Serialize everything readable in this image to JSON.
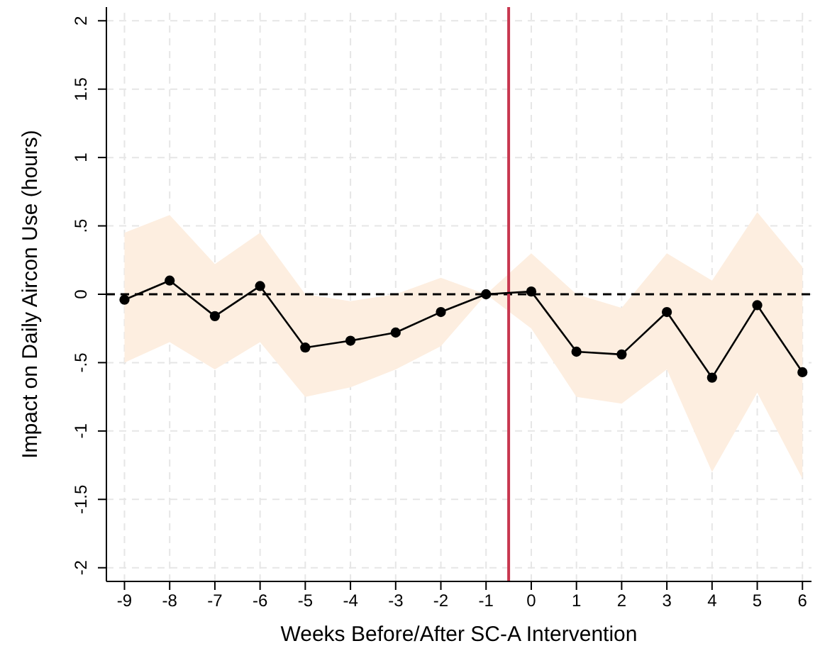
{
  "chart_data": {
    "type": "line",
    "xlabel": "Weeks Before/After SC-A Intervention",
    "ylabel": "Impact on Daily Aircon Use (hours)",
    "x": [
      -9,
      -8,
      -7,
      -6,
      -5,
      -4,
      -3,
      -2,
      -1,
      0,
      1,
      2,
      3,
      4,
      5,
      6
    ],
    "series": [
      {
        "color": "#000000",
        "values": [
          -0.04,
          0.1,
          -0.16,
          0.06,
          -0.39,
          -0.34,
          -0.28,
          -0.13,
          0,
          0.02,
          -0.42,
          -0.44,
          -0.13,
          -0.61,
          -0.08,
          -0.57
        ],
        "lower": [
          -0.5,
          -0.35,
          -0.55,
          -0.35,
          -0.75,
          -0.68,
          -0.55,
          -0.38,
          0,
          -0.25,
          -0.75,
          -0.8,
          -0.55,
          -1.3,
          -0.72,
          -1.35
        ],
        "upper": [
          0.45,
          0.58,
          0.22,
          0.45,
          0,
          -0.05,
          0,
          0.12,
          0,
          0.3,
          0,
          -0.1,
          0.3,
          0.1,
          0.6,
          0.2
        ]
      }
    ],
    "xlim": [
      -9.4,
      6.2
    ],
    "xticks": [
      -9,
      -8,
      -7,
      -6,
      -5,
      -4,
      -3,
      -2,
      -1,
      0,
      1,
      2,
      3,
      4,
      5,
      6
    ],
    "ylim": [
      -2.1,
      2.1
    ],
    "yticks": [
      -2,
      -1.5,
      -1,
      {
        "value": -0.5,
        "label": "-.5"
      },
      0,
      {
        "value": 0.5,
        "label": ".5"
      },
      1,
      1.5,
      2
    ],
    "grid": true,
    "marker": "circle",
    "line_style": "solid",
    "ref_lines": [
      {
        "axis": "y",
        "value": 0,
        "color": "#000000",
        "line_style": "dashed"
      },
      {
        "axis": "x",
        "value": -0.5,
        "color": "#c8374f",
        "line_style": "solid"
      }
    ]
  }
}
